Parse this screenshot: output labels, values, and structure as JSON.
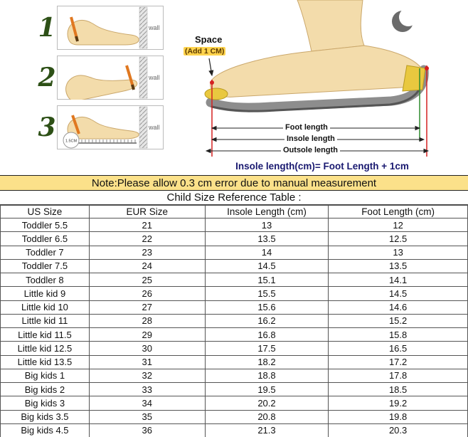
{
  "instructions": {
    "steps": [
      {
        "number": "1",
        "wall_label": "wall"
      },
      {
        "number": "2",
        "wall_label": "wall"
      },
      {
        "number": "3",
        "wall_label": "wall",
        "badge": "1.5CM"
      }
    ],
    "space_label": "Space",
    "space_sub": "(Add 1 CM)",
    "measure_labels": [
      "Foot length",
      "Insole length",
      "Outsole length"
    ],
    "formula": "Insole length(cm)= Foot Length + 1cm"
  },
  "note": "Note:Please allow 0.3 cm error due to manual measurement",
  "table": {
    "title": "Child Size Reference Table :",
    "headers": [
      "US Size",
      "EUR Size",
      "Insole Length (cm)",
      "Foot Length (cm)"
    ],
    "rows": [
      [
        "Toddler 5.5",
        "21",
        "13",
        "12"
      ],
      [
        "Toddler 6.5",
        "22",
        "13.5",
        "12.5"
      ],
      [
        "Toddler 7",
        "23",
        "14",
        "13"
      ],
      [
        "Toddler 7.5",
        "24",
        "14.5",
        "13.5"
      ],
      [
        "Toddler 8",
        "25",
        "15.1",
        "14.1"
      ],
      [
        "Little kid 9",
        "26",
        "15.5",
        "14.5"
      ],
      [
        "Little kid 10",
        "27",
        "15.6",
        "14.6"
      ],
      [
        "Little kid 11",
        "28",
        "16.2",
        "15.2"
      ],
      [
        "Little kid 11.5",
        "29",
        "16.8",
        "15.8"
      ],
      [
        "Little kid 12.5",
        "30",
        "17.5",
        "16.5"
      ],
      [
        "Little kid 13.5",
        "31",
        "18.2",
        "17.2"
      ],
      [
        "Big kids 1",
        "32",
        "18.8",
        "17.8"
      ],
      [
        "Big kids 2",
        "33",
        "19.5",
        "18.5"
      ],
      [
        "Big kids 3",
        "34",
        "20.2",
        "19.2"
      ],
      [
        "Big kids 3.5",
        "35",
        "20.8",
        "19.8"
      ],
      [
        "Big kids 4.5",
        "36",
        "21.3",
        "20.3"
      ]
    ]
  },
  "colors": {
    "note_background": "#fbe18a",
    "measure_line_red": "#d42020",
    "measure_line_green": "#2e8b2e",
    "formula_text": "#191970",
    "insole_yellow": "#e9c83f"
  }
}
